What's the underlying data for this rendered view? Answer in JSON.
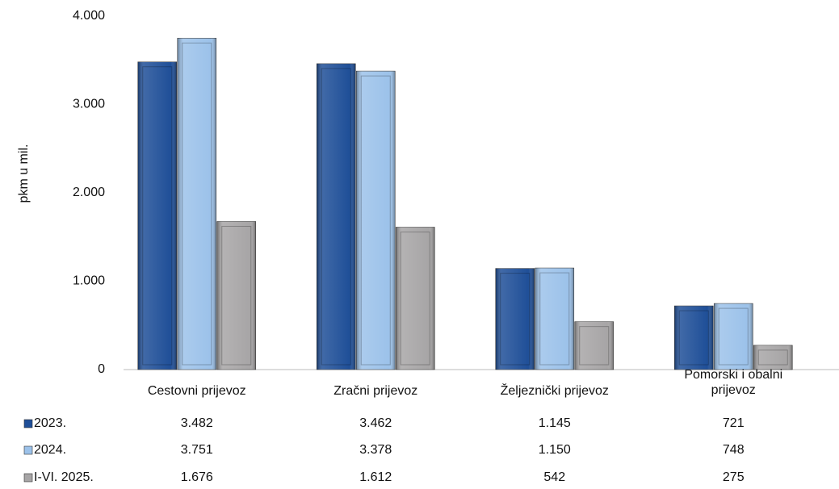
{
  "chart_data": {
    "type": "bar",
    "y_label": "pkm u mil.",
    "categories": [
      "Cestovni prijevoz",
      "Zračni prijevoz",
      "Željeznički prijevoz",
      "Pomorski i obalni prijevoz"
    ],
    "series": [
      {
        "name": "2023.",
        "color": "#1f4f98",
        "values": [
          3482,
          3462,
          1145,
          721
        ],
        "value_labels": [
          "3.482",
          "3.462",
          "1.145",
          "721"
        ]
      },
      {
        "name": "2024.",
        "color": "#9cc2ea",
        "values": [
          3751,
          3378,
          1150,
          748
        ],
        "value_labels": [
          "3.751",
          "3.378",
          "1.150",
          "748"
        ]
      },
      {
        "name": "I-VI. 2025.",
        "color": "#a7a5a6",
        "values": [
          1676,
          1612,
          542,
          275
        ],
        "value_labels": [
          "1.676",
          "1.612",
          "542",
          "275"
        ]
      }
    ],
    "ylim": [
      0,
      4000
    ],
    "yticks": [
      0,
      {
        "value": 1000,
        "label": "1.000"
      },
      {
        "value": 2000,
        "label": "2.000"
      },
      {
        "value": 3000,
        "label": "3.000"
      },
      {
        "value": 4000,
        "label": "4.000"
      }
    ],
    "grid": false
  }
}
